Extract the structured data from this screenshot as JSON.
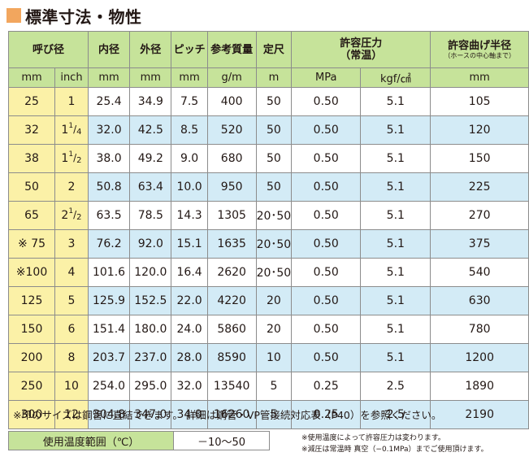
{
  "title": "標準寸法・物性",
  "colors": {
    "title_square": "#f2a65e",
    "header_green": "#c6e39a",
    "nominal_yellow": "#fbf1a7",
    "row_blue": "#d3ebf6"
  },
  "headers": {
    "nominal": "呼び径",
    "inner": "内径",
    "outer": "外径",
    "pitch": "ピッチ",
    "weight": "参考質量",
    "length": "定尺",
    "pressure_line1": "許容圧力",
    "pressure_line2": "（常温）",
    "bend": "許容曲げ半径",
    "bend_note": "（ホースの中心軸まで）"
  },
  "units": [
    "mm",
    "inch",
    "mm",
    "mm",
    "mm",
    "g/m",
    "m",
    "MPa",
    "kgf/㎠",
    "mm"
  ],
  "rows": [
    {
      "mm": "25",
      "inch": "1",
      "inner": "25.4",
      "outer": "34.9",
      "pitch": "7.5",
      "weight": "400",
      "length": "50",
      "mpa": "0.50",
      "kgf": "5.1",
      "bend": "105"
    },
    {
      "mm": "32",
      "inch": "1",
      "inch_num": "1",
      "inch_den": "4",
      "inner": "32.0",
      "outer": "42.5",
      "pitch": "8.5",
      "weight": "520",
      "length": "50",
      "mpa": "0.50",
      "kgf": "5.1",
      "bend": "120"
    },
    {
      "mm": "38",
      "inch": "1",
      "inch_num": "1",
      "inch_den": "2",
      "inner": "38.0",
      "outer": "49.2",
      "pitch": "9.0",
      "weight": "680",
      "length": "50",
      "mpa": "0.50",
      "kgf": "5.1",
      "bend": "150"
    },
    {
      "mm": "50",
      "inch": "2",
      "inner": "50.8",
      "outer": "63.4",
      "pitch": "10.0",
      "weight": "950",
      "length": "50",
      "mpa": "0.50",
      "kgf": "5.1",
      "bend": "225"
    },
    {
      "mm": "65",
      "inch": "2",
      "inch_num": "1",
      "inch_den": "2",
      "inner": "63.5",
      "outer": "78.5",
      "pitch": "14.3",
      "weight": "1305",
      "length": "20･50",
      "mpa": "0.50",
      "kgf": "5.1",
      "bend": "270"
    },
    {
      "mm": "※ 75",
      "inch": "3",
      "inner": "76.2",
      "outer": "92.0",
      "pitch": "15.1",
      "weight": "1635",
      "length": "20･50",
      "mpa": "0.50",
      "kgf": "5.1",
      "bend": "375"
    },
    {
      "mm": "※100",
      "inch": "4",
      "inner": "101.6",
      "outer": "120.0",
      "pitch": "16.4",
      "weight": "2620",
      "length": "20･50",
      "mpa": "0.50",
      "kgf": "5.1",
      "bend": "540"
    },
    {
      "mm": "125",
      "inch": "5",
      "inner": "125.9",
      "outer": "152.5",
      "pitch": "22.0",
      "weight": "4220",
      "length": "20",
      "mpa": "0.50",
      "kgf": "5.1",
      "bend": "630"
    },
    {
      "mm": "150",
      "inch": "6",
      "inner": "151.4",
      "outer": "180.0",
      "pitch": "24.0",
      "weight": "5860",
      "length": "20",
      "mpa": "0.50",
      "kgf": "5.1",
      "bend": "780"
    },
    {
      "mm": "200",
      "inch": "8",
      "inner": "203.7",
      "outer": "237.0",
      "pitch": "28.0",
      "weight": "8590",
      "length": "10",
      "mpa": "0.50",
      "kgf": "5.1",
      "bend": "1200"
    },
    {
      "mm": "250",
      "inch": "10",
      "inner": "254.0",
      "outer": "295.0",
      "pitch": "32.0",
      "weight": "13540",
      "length": "5",
      "mpa": "0.25",
      "kgf": "2.5",
      "bend": "1890"
    },
    {
      "mm": "300",
      "inch": "12",
      "inner": "304.8",
      "outer": "347.0",
      "pitch": "34.0",
      "weight": "16260",
      "length": "5",
      "mpa": "0.25",
      "kgf": "2.5",
      "bend": "2190"
    }
  ],
  "note_main": "※印のサイズは鋼管に直結できます。 詳細は鋼管・VP管接続対応表（P40）を参照ください。",
  "temp_label": "使用温度範囲（℃）",
  "temp_value": "－10～50",
  "note_pressure": "※使用温度によって許容圧力は変わります。",
  "note_vacuum": "※減圧は常温時 真空（−0.1MPa）までご使用頂けます。"
}
